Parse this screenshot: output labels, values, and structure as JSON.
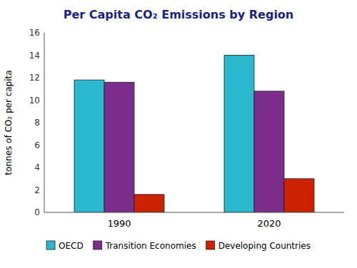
{
  "chart_data": {
    "type": "bar",
    "title": "Per Capita CO₂ Emissions by Region",
    "ylabel": "tonnes of CO₂ per capita",
    "categories": [
      "1990",
      "2020"
    ],
    "series": [
      {
        "name": "OECD",
        "color": "#29B8CE",
        "values": [
          11.8,
          14.0
        ]
      },
      {
        "name": "Transition Economies",
        "color": "#7B2D8B",
        "values": [
          11.6,
          10.8
        ]
      },
      {
        "name": "Developing Countries",
        "color": "#CC2200",
        "values": [
          1.6,
          3.0
        ]
      }
    ],
    "ylim": [
      0,
      16
    ],
    "yticks": [
      0,
      2,
      4,
      6,
      8,
      10,
      12,
      14,
      16
    ],
    "grid": false,
    "legend": "bottom"
  }
}
